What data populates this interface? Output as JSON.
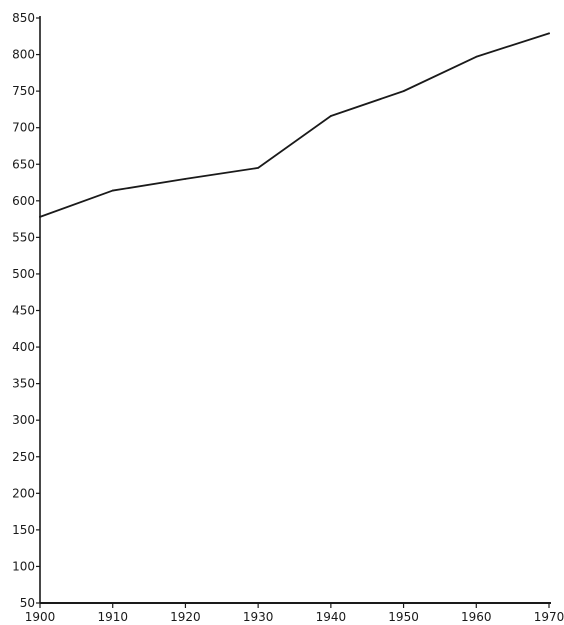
{
  "chart_data": {
    "type": "line",
    "title": "",
    "xlabel": "",
    "ylabel": "",
    "x": [
      1900,
      1910,
      1920,
      1930,
      1940,
      1950,
      1960,
      1970
    ],
    "series": [
      {
        "values": [
          578,
          614,
          630,
          645,
          716,
          750,
          797,
          829
        ]
      }
    ],
    "xlim": [
      1900,
      1970
    ],
    "ylim": [
      50,
      850
    ],
    "xticks": [
      "1900",
      "1910",
      "1920",
      "1930",
      "1940",
      "1950",
      "1960",
      "1970"
    ],
    "yticks": [
      "50",
      "100",
      "150",
      "200",
      "250",
      "300",
      "350",
      "400",
      "450",
      "500",
      "550",
      "600",
      "650",
      "700",
      "750",
      "800",
      "850"
    ],
    "grid": false,
    "legend": "none",
    "line_color": "#1a1a1a"
  }
}
